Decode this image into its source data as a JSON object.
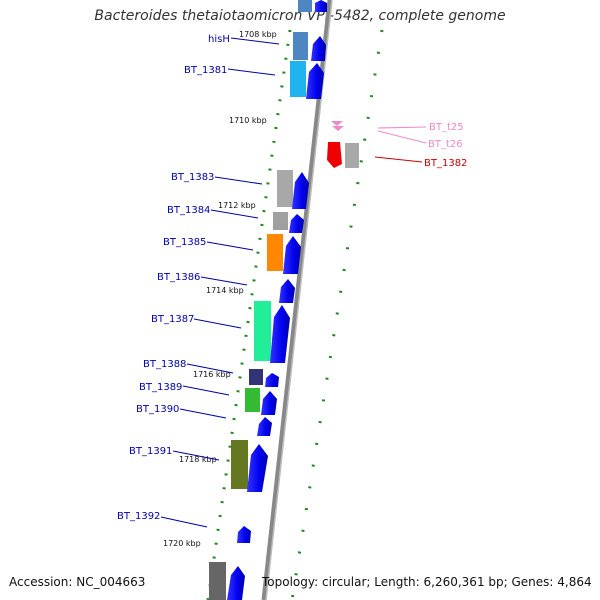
{
  "title": "Bacteroides thetaiotaomicron VPI-5482, complete genome",
  "accession": "Accession: NC_004663",
  "summary": "Topology: circular; Length: 6,260,361 bp; Genes: 4,864",
  "scale_labels": [
    "1708 kbp",
    "1710 kbp",
    "1712 kbp",
    "1714 kbp",
    "1716 kbp",
    "1718 kbp",
    "1720 kbp"
  ],
  "genes": [
    {
      "name": "hisH",
      "color": "#4d86c0"
    },
    {
      "name": "BT_1381",
      "color": "#1fb3f0"
    },
    {
      "name": "BT_t25",
      "color": "#ee88cc"
    },
    {
      "name": "BT_t26",
      "color": "#ee88cc"
    },
    {
      "name": "BT_1382",
      "color": "#ee0000"
    },
    {
      "name": "BT_1383",
      "color": "#a8a8a8"
    },
    {
      "name": "BT_1384",
      "color": "#a0a0a0"
    },
    {
      "name": "BT_1385",
      "color": "#ff8800"
    },
    {
      "name": "BT_1386",
      "color": "#0000ee"
    },
    {
      "name": "BT_1387",
      "color": "#22ee99"
    },
    {
      "name": "BT_1388",
      "color": "#333377"
    },
    {
      "name": "BT_1389",
      "color": "#33bb33"
    },
    {
      "name": "BT_1390",
      "color": "#0000ee"
    },
    {
      "name": "BT_1391",
      "color": "#667722"
    },
    {
      "name": "BT_1392",
      "color": "#0000ee"
    }
  ],
  "colors": {
    "cds": "#0000ee",
    "label_blue": "#0000aa",
    "label_pink": "#ee88cc",
    "label_red": "#cc0000",
    "backbone": "#888888",
    "tick": "#228822"
  }
}
